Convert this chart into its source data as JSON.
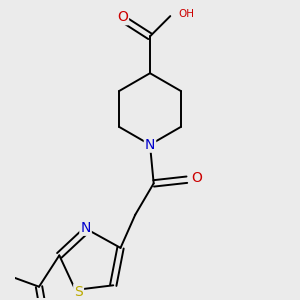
{
  "bg_color": "#ebebeb",
  "atom_colors": {
    "C": "#000000",
    "N": "#0000cc",
    "O": "#cc0000",
    "S": "#bbaa00",
    "H": "#888888"
  },
  "line_color": "#000000",
  "line_width": 1.4,
  "font_size": 8.5
}
